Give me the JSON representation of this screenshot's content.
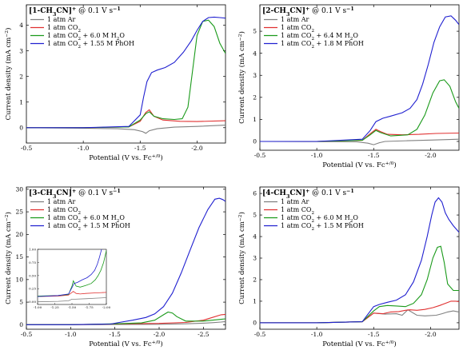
{
  "charts": [
    {
      "id": "p1",
      "title": {
        "parts": [
          [
            "[1-CH",
            1
          ],
          [
            "3",
            "sub"
          ],
          [
            "CN]",
            1
          ],
          [
            "+",
            "sup"
          ],
          [
            " @ 0.1 V s",
            0
          ],
          [
            "−1",
            "sup"
          ]
        ]
      },
      "xlim": [
        -0.5,
        -2.25
      ],
      "ylim": [
        -0.6,
        4.8
      ],
      "xticks": [
        -0.5,
        -1.0,
        -1.5,
        -2.0
      ],
      "yticks": [
        0,
        1,
        2,
        3,
        4
      ],
      "xtick_labels": [
        "-0.5",
        "-1.0",
        "-1.5",
        "-2.0"
      ],
      "ytick_labels": [
        "0",
        "1",
        "2",
        "3",
        "4"
      ],
      "ylabel": "Current density (mA cm−2)",
      "xlabel": "Potential (V vs. Fc+/0)",
      "legend": [
        "1 atm Ar",
        "1 atm CO2",
        "1 atm CO2 + 6.0 M H2O",
        "1 atm CO2 + 1.55 M PhOH"
      ],
      "series": [
        {
          "name": "1 atm Ar",
          "color": "#808080",
          "x": [
            -0.5,
            -1.0,
            -1.3,
            -1.45,
            -1.52,
            -1.55,
            -1.58,
            -1.65,
            -1.8,
            -2.0,
            -2.25
          ],
          "y": [
            0.0,
            -0.02,
            -0.04,
            -0.08,
            -0.15,
            -0.22,
            -0.12,
            -0.04,
            0.02,
            0.05,
            0.1
          ]
        },
        {
          "name": "1 atm CO2",
          "color": "#e03030",
          "x": [
            -0.5,
            -1.0,
            -1.4,
            -1.5,
            -1.55,
            -1.58,
            -1.62,
            -1.7,
            -1.85,
            -2.0,
            -2.25
          ],
          "y": [
            0.0,
            0.0,
            0.03,
            0.25,
            0.6,
            0.7,
            0.45,
            0.3,
            0.25,
            0.24,
            0.27
          ]
        },
        {
          "name": "1 atm CO2 + 6.0 M H2O",
          "color": "#1a9a1a",
          "x": [
            -0.5,
            -1.0,
            -1.4,
            -1.5,
            -1.55,
            -1.58,
            -1.62,
            -1.7,
            -1.8,
            -1.87,
            -1.92,
            -1.96,
            -2.0,
            -2.05,
            -2.1,
            -2.15,
            -2.2,
            -2.25
          ],
          "y": [
            0.0,
            0.0,
            0.03,
            0.3,
            0.55,
            0.62,
            0.45,
            0.35,
            0.32,
            0.35,
            0.8,
            2.2,
            3.6,
            4.15,
            4.2,
            3.95,
            3.3,
            2.9
          ]
        },
        {
          "name": "1 atm CO2 + 1.55 M PhOH",
          "color": "#2020d0",
          "x": [
            -0.5,
            -1.0,
            -1.4,
            -1.5,
            -1.53,
            -1.56,
            -1.6,
            -1.65,
            -1.72,
            -1.8,
            -1.88,
            -1.95,
            -2.0,
            -2.05,
            -2.1,
            -2.15,
            -2.2,
            -2.25
          ],
          "y": [
            0.0,
            0.0,
            0.05,
            0.5,
            1.2,
            1.8,
            2.15,
            2.25,
            2.35,
            2.55,
            2.95,
            3.4,
            3.8,
            4.15,
            4.3,
            4.32,
            4.3,
            4.28
          ]
        }
      ]
    },
    {
      "id": "p2",
      "title": {
        "parts": [
          [
            "[2-CH",
            1
          ],
          [
            "3",
            "sub"
          ],
          [
            "CN]",
            1
          ],
          [
            "+",
            "sup"
          ],
          [
            " @ 0.1 V s",
            0
          ],
          [
            "−1",
            "sup"
          ]
        ]
      },
      "xlim": [
        -0.5,
        -2.25
      ],
      "ylim": [
        -0.4,
        6.2
      ],
      "xticks": [
        -0.5,
        -1.0,
        -1.5,
        -2.0
      ],
      "yticks": [
        0,
        1,
        2,
        3,
        4,
        5
      ],
      "xtick_labels": [
        "-0.5",
        "-1.0",
        "-1.5",
        "-2.0"
      ],
      "ytick_labels": [
        "0",
        "1",
        "2",
        "3",
        "4",
        "5"
      ],
      "ylabel": "Current density (mA cm−2)",
      "xlabel": "Potential (V vs. Fc+/0)",
      "legend": [
        "1 atm Ar",
        "1 atm CO2",
        "1 atm CO2 + 6.4 M H2O",
        "1 atm CO2 + 1.8 M PhOH"
      ],
      "series": [
        {
          "name": "1 atm Ar",
          "color": "#808080",
          "x": [
            -0.5,
            -1.0,
            -1.35,
            -1.45,
            -1.5,
            -1.55,
            -1.6,
            -1.8,
            -2.0,
            -2.25
          ],
          "y": [
            0.0,
            -0.01,
            -0.02,
            -0.08,
            -0.15,
            -0.06,
            0.0,
            0.03,
            0.06,
            0.1
          ]
        },
        {
          "name": "1 atm CO2",
          "color": "#e03030",
          "x": [
            -0.5,
            -1.0,
            -1.4,
            -1.47,
            -1.52,
            -1.56,
            -1.62,
            -1.75,
            -1.9,
            -2.05,
            -2.25
          ],
          "y": [
            0.0,
            0.0,
            0.05,
            0.35,
            0.55,
            0.45,
            0.32,
            0.3,
            0.32,
            0.36,
            0.38
          ]
        },
        {
          "name": "1 atm CO2 + 6.4 M H2O",
          "color": "#1a9a1a",
          "x": [
            -0.5,
            -1.0,
            -1.4,
            -1.47,
            -1.52,
            -1.56,
            -1.65,
            -1.8,
            -1.88,
            -1.95,
            -2.02,
            -2.08,
            -2.12,
            -2.17,
            -2.22,
            -2.25
          ],
          "y": [
            0.0,
            0.0,
            0.05,
            0.3,
            0.5,
            0.4,
            0.25,
            0.3,
            0.55,
            1.2,
            2.2,
            2.75,
            2.8,
            2.5,
            1.8,
            1.5
          ]
        },
        {
          "name": "1 atm CO2 + 1.8 M PhOH",
          "color": "#2020d0",
          "x": [
            -0.5,
            -1.0,
            -1.4,
            -1.47,
            -1.52,
            -1.58,
            -1.65,
            -1.75,
            -1.82,
            -1.88,
            -1.93,
            -1.98,
            -2.03,
            -2.08,
            -2.13,
            -2.18,
            -2.22,
            -2.25
          ],
          "y": [
            0.0,
            0.0,
            0.1,
            0.5,
            0.9,
            1.05,
            1.15,
            1.3,
            1.5,
            1.9,
            2.6,
            3.5,
            4.5,
            5.2,
            5.65,
            5.7,
            5.5,
            5.3
          ]
        }
      ]
    },
    {
      "id": "p3",
      "title": {
        "parts": [
          [
            "[3-CH",
            1
          ],
          [
            "3",
            "sub"
          ],
          [
            "CN]",
            1
          ],
          [
            "+",
            "sup"
          ],
          [
            " @ 0.1 V s",
            0
          ],
          [
            "−1",
            "sup"
          ]
        ]
      },
      "xlim": [
        -0.5,
        -2.75
      ],
      "ylim": [
        -1.0,
        30.5
      ],
      "xticks": [
        -0.5,
        -1.0,
        -1.5,
        -2.0,
        -2.5
      ],
      "yticks": [
        0,
        5,
        10,
        15,
        20,
        25,
        30
      ],
      "xtick_labels": [
        "-0.5",
        "-1.0",
        "-1.5",
        "-2.0",
        "-2.5"
      ],
      "ytick_labels": [
        "0",
        "5",
        "10",
        "15",
        "20",
        "25",
        "30"
      ],
      "ylabel": "Current density (mA cm−2)",
      "xlabel": "Potential (V vs. Fc+/0)",
      "legend": [
        "1 atm Ar",
        "1 atm CO2",
        "1 atm CO2 + 6.0 M H2O",
        "1 atm CO2 + 1.5 M PhOH"
      ],
      "inset": {
        "xlim": [
          -1.0,
          -2.0
        ],
        "ylim": [
          -0.05,
          1.0
        ],
        "xticks": [
          -1.0,
          -1.25,
          -1.5,
          -1.75,
          -2.0
        ],
        "yticks": [
          0.0,
          0.25,
          0.5,
          0.75,
          1.0
        ],
        "xtick_labels": [
          "-1.00",
          "-1.25",
          "-1.50",
          "-1.75",
          "-2.00"
        ],
        "ytick_labels": [
          "0.00",
          "0.25",
          "0.50",
          "0.75",
          "1.00"
        ],
        "series": [
          {
            "color": "#808080",
            "x": [
              -1.0,
              -1.3,
              -1.45,
              -1.5,
              -1.55,
              -1.7,
              -1.85,
              -2.0
            ],
            "y": [
              0.0,
              0.01,
              0.02,
              0.05,
              0.05,
              0.06,
              0.07,
              0.08
            ]
          },
          {
            "color": "#e03030",
            "x": [
              -1.0,
              -1.3,
              -1.45,
              -1.52,
              -1.56,
              -1.62,
              -1.7,
              -1.85,
              -2.0
            ],
            "y": [
              0.1,
              0.11,
              0.13,
              0.2,
              0.16,
              0.15,
              0.16,
              0.17,
              0.18
            ]
          },
          {
            "color": "#1a9a1a",
            "x": [
              -1.0,
              -1.3,
              -1.45,
              -1.5,
              -1.52,
              -1.56,
              -1.62,
              -1.7,
              -1.78,
              -1.84,
              -1.88,
              -1.92,
              -1.96,
              -2.0
            ],
            "y": [
              0.11,
              0.12,
              0.14,
              0.3,
              0.4,
              0.3,
              0.28,
              0.31,
              0.35,
              0.42,
              0.5,
              0.6,
              0.75,
              0.98
            ]
          },
          {
            "color": "#2020d0",
            "x": [
              -1.0,
              -1.3,
              -1.45,
              -1.5,
              -1.53,
              -1.58,
              -1.65,
              -1.72,
              -1.78,
              -1.83,
              -1.87,
              -1.9,
              -1.93
            ],
            "y": [
              0.1,
              0.12,
              0.15,
              0.27,
              0.35,
              0.37,
              0.42,
              0.46,
              0.52,
              0.6,
              0.72,
              0.85,
              1.0
            ]
          }
        ]
      },
      "series": [
        {
          "name": "1 atm Ar",
          "color": "#808080",
          "x": [
            -0.5,
            -1.0,
            -1.5,
            -2.0,
            -2.3,
            -2.5,
            -2.6,
            -2.7,
            -2.75
          ],
          "y": [
            0.0,
            0.0,
            0.05,
            0.1,
            0.2,
            0.35,
            0.45,
            0.6,
            0.7
          ]
        },
        {
          "name": "1 atm CO2",
          "color": "#e03030",
          "x": [
            -0.5,
            -1.0,
            -1.5,
            -1.6,
            -2.0,
            -2.3,
            -2.5,
            -2.6,
            -2.7,
            -2.75
          ],
          "y": [
            0.0,
            0.0,
            0.15,
            0.2,
            0.3,
            0.5,
            1.0,
            1.6,
            2.2,
            2.3
          ]
        },
        {
          "name": "1 atm CO2 + 6.0 M H2O",
          "color": "#1a9a1a",
          "x": [
            -0.5,
            -1.0,
            -1.5,
            -1.8,
            -1.95,
            -2.05,
            -2.1,
            -2.15,
            -2.2,
            -2.3,
            -2.5,
            -2.6,
            -2.7,
            -2.75
          ],
          "y": [
            0.0,
            0.0,
            0.2,
            0.4,
            1.0,
            2.2,
            2.8,
            2.6,
            1.8,
            0.8,
            0.8,
            1.0,
            1.2,
            1.3
          ]
        },
        {
          "name": "1 atm CO2 + 1.5 M PhOH",
          "color": "#2020d0",
          "x": [
            -0.5,
            -1.0,
            -1.45,
            -1.55,
            -1.7,
            -1.85,
            -1.95,
            -2.05,
            -2.15,
            -2.25,
            -2.35,
            -2.45,
            -2.55,
            -2.63,
            -2.68,
            -2.72,
            -2.75
          ],
          "y": [
            0.0,
            0.0,
            0.15,
            0.5,
            1.0,
            1.6,
            2.4,
            4.0,
            7.0,
            11.5,
            16.5,
            21.5,
            25.5,
            27.8,
            28.0,
            27.7,
            27.3
          ]
        }
      ]
    },
    {
      "id": "p4",
      "title": {
        "parts": [
          [
            "[4-CH",
            1
          ],
          [
            "3",
            "sub"
          ],
          [
            "CN]",
            1
          ],
          [
            "+",
            "sup"
          ],
          [
            " @ 0.1 V s",
            0
          ],
          [
            "−1",
            "sup"
          ]
        ]
      },
      "xlim": [
        -0.5,
        -2.25
      ],
      "ylim": [
        -0.3,
        6.3
      ],
      "xticks": [
        -0.5,
        -1.0,
        -1.5,
        -2.0
      ],
      "yticks": [
        0,
        1,
        2,
        3,
        4,
        5,
        6
      ],
      "xtick_labels": [
        "-0.5",
        "-1.0",
        "-1.5",
        "-2.0"
      ],
      "ytick_labels": [
        "0",
        "1",
        "2",
        "3",
        "4",
        "5",
        "6"
      ],
      "ylabel": "Current density (mA cm−2)",
      "xlabel": "Potential (V vs. Fc+/0)",
      "legend": [
        "1 atm Ar",
        "1 atm CO2",
        "1 atm CO2 + 6.0 M H2O",
        "1 atm CO2 + 1.5 M PhOH"
      ],
      "series": [
        {
          "name": "1 atm Ar",
          "color": "#808080",
          "x": [
            -0.5,
            -1.0,
            -1.4,
            -1.45,
            -1.5,
            -1.6,
            -1.7,
            -1.75,
            -1.8,
            -1.88,
            -1.95,
            -2.05,
            -2.1,
            -2.15,
            -2.2,
            -2.25
          ],
          "y": [
            0.0,
            0.0,
            0.05,
            0.25,
            0.45,
            0.4,
            0.42,
            0.35,
            0.6,
            0.35,
            0.32,
            0.35,
            0.42,
            0.5,
            0.55,
            0.5
          ]
        },
        {
          "name": "1 atm CO2",
          "color": "#e03030",
          "x": [
            -0.5,
            -1.0,
            -1.4,
            -1.45,
            -1.5,
            -1.58,
            -1.65,
            -1.72,
            -1.78,
            -1.82,
            -1.88,
            -1.95,
            -2.02,
            -2.08,
            -2.13,
            -2.18,
            -2.22,
            -2.25
          ],
          "y": [
            0.0,
            0.0,
            0.05,
            0.25,
            0.45,
            0.42,
            0.5,
            0.52,
            0.58,
            0.6,
            0.58,
            0.62,
            0.7,
            0.8,
            0.9,
            1.0,
            1.0,
            0.98
          ]
        },
        {
          "name": "1 atm CO2 + 6.0 M H2O",
          "color": "#1a9a1a",
          "x": [
            -0.5,
            -1.0,
            -1.4,
            -1.45,
            -1.5,
            -1.55,
            -1.62,
            -1.7,
            -1.78,
            -1.85,
            -1.92,
            -1.97,
            -2.02,
            -2.06,
            -2.09,
            -2.12,
            -2.15,
            -2.2,
            -2.25
          ],
          "y": [
            0.0,
            0.0,
            0.05,
            0.3,
            0.55,
            0.75,
            0.8,
            0.78,
            0.75,
            0.9,
            1.3,
            2.0,
            3.0,
            3.5,
            3.55,
            2.8,
            1.8,
            1.5,
            1.5
          ]
        },
        {
          "name": "1 atm CO2 + 1.5 M PhOH",
          "color": "#2020d0",
          "x": [
            -0.5,
            -1.0,
            -1.4,
            -1.45,
            -1.5,
            -1.55,
            -1.62,
            -1.7,
            -1.78,
            -1.85,
            -1.92,
            -1.97,
            -2.01,
            -2.04,
            -2.07,
            -2.1,
            -2.13,
            -2.16,
            -2.2,
            -2.25
          ],
          "y": [
            0.0,
            0.0,
            0.05,
            0.4,
            0.75,
            0.85,
            0.95,
            1.05,
            1.3,
            1.9,
            2.9,
            4.0,
            5.0,
            5.6,
            5.8,
            5.6,
            5.1,
            4.8,
            4.5,
            4.2
          ]
        }
      ]
    }
  ],
  "legend_labels": {
    "ar": "1 atm Ar",
    "co2": "1 atm CO",
    "co2_sub": "2",
    "h2o_prefix": "1 atm CO",
    "h2o_mid": " + 6.0 M H",
    "h2o_end": "O"
  }
}
